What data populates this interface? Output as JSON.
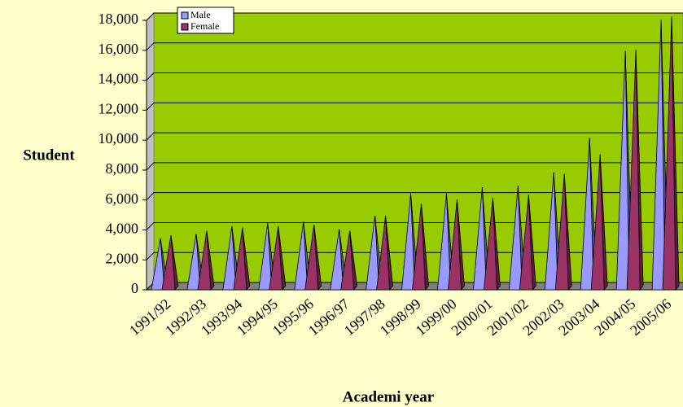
{
  "chart_data": {
    "type": "bar",
    "x_label": "Academi year",
    "y_label": "Student",
    "categories": [
      "1991/92",
      "1992/93",
      "1993/94",
      "1994/95",
      "1995/96",
      "1996/97",
      "1997/98",
      "1998/99",
      "1999/00",
      "2000/01",
      "2001/02",
      "2002/03",
      "2003/04",
      "2004/05",
      "2005/06"
    ],
    "series": [
      {
        "name": "Male",
        "color": "#9999ff",
        "values": [
          3200,
          3500,
          4000,
          4200,
          4300,
          3800,
          4700,
          6200,
          6200,
          6600,
          6700,
          7600,
          9900,
          15700,
          17800
        ]
      },
      {
        "name": "Female",
        "color": "#993366",
        "values": [
          3400,
          3700,
          3900,
          4000,
          4100,
          3700,
          4700,
          5500,
          5800,
          5900,
          6100,
          7500,
          8800,
          15800,
          18000
        ]
      }
    ],
    "ylim": [
      0,
      18000
    ],
    "yticks": [
      0,
      {
        "value": 2000,
        "label": "2,000"
      },
      {
        "value": 4000,
        "label": "4,000"
      },
      {
        "value": 6000,
        "label": "6,000"
      },
      {
        "value": 8000,
        "label": "8,000"
      },
      {
        "value": 10000,
        "label": "10,000"
      },
      {
        "value": 12000,
        "label": "12,000"
      },
      {
        "value": 14000,
        "label": "14,000"
      },
      {
        "value": 16000,
        "label": "16,000"
      },
      {
        "value": 18000,
        "label": "18,000"
      }
    ],
    "grid": true,
    "plot_color": "#99cc00",
    "legend": "top-left"
  }
}
